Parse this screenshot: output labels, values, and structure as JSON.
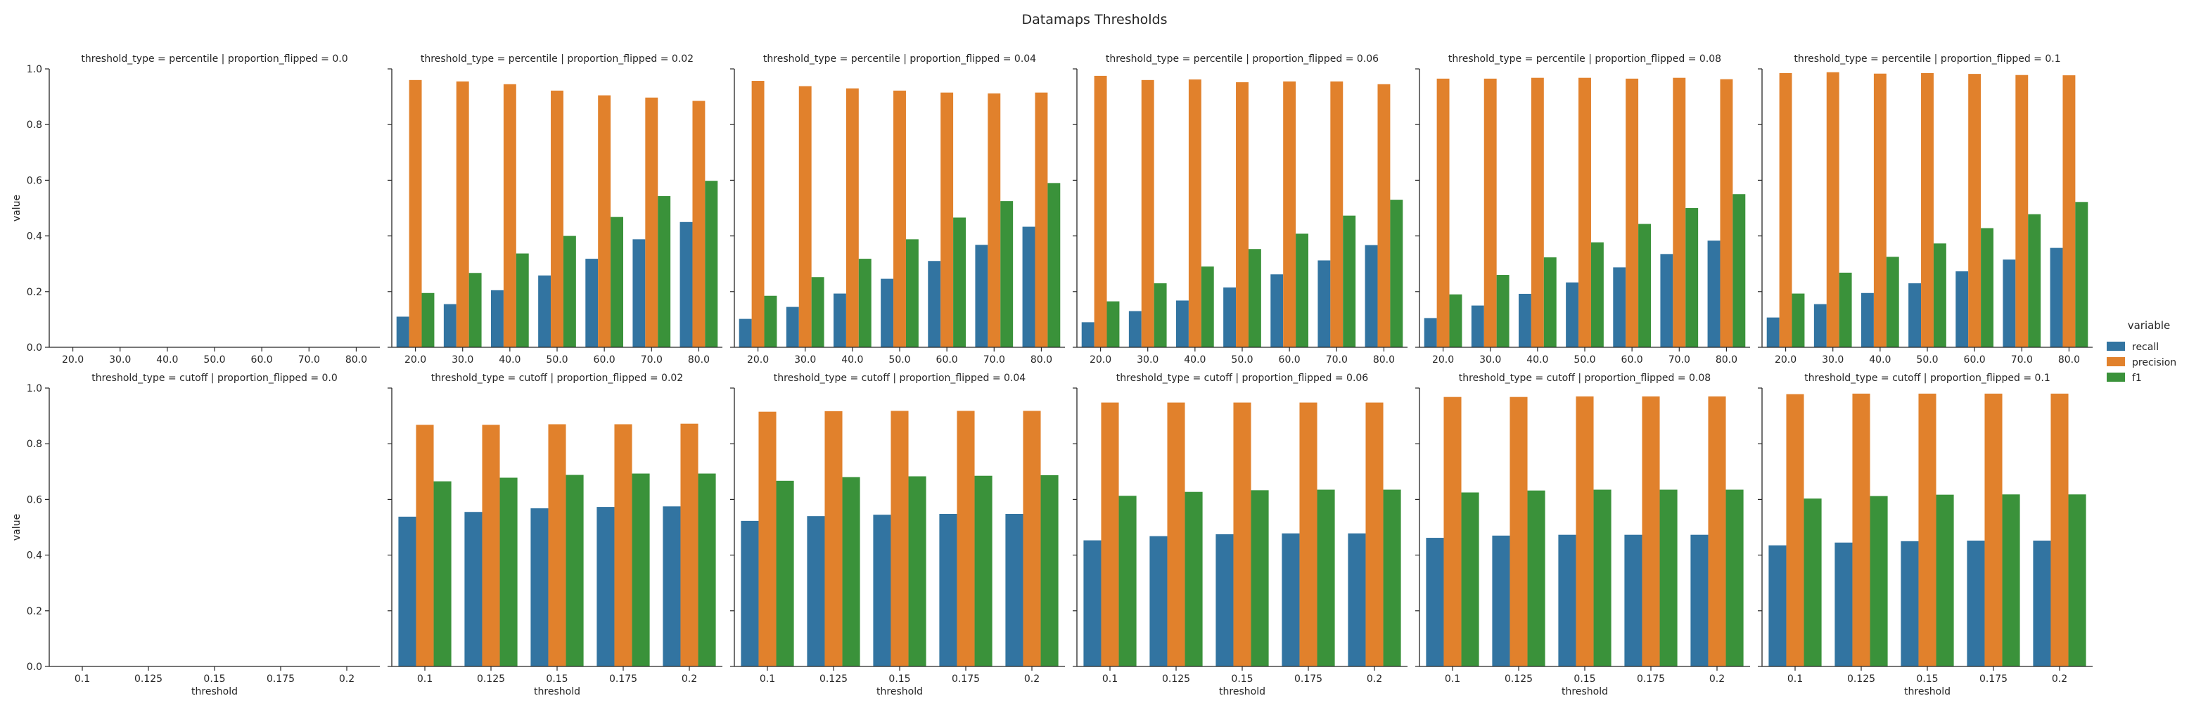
{
  "figure": {
    "title": "Datamaps Thresholds",
    "legend": {
      "title": "variable",
      "placement": "right",
      "entries": [
        {
          "name": "recall",
          "color": "#3274a1"
        },
        {
          "name": "precision",
          "color": "#e1812c"
        },
        {
          "name": "f1",
          "color": "#3a923a"
        }
      ]
    },
    "ylabel": "value",
    "xlabel": "threshold"
  },
  "chart_data": [
    {
      "type": "bar",
      "title": "threshold_type = percentile | proportion_flipped = 0.0",
      "xlabel": "",
      "ylabel": "value",
      "ylim": [
        0,
        1
      ],
      "categories": [
        "20.0",
        "30.0",
        "40.0",
        "50.0",
        "60.0",
        "70.0",
        "80.0"
      ],
      "series": []
    },
    {
      "type": "bar",
      "title": "threshold_type = percentile | proportion_flipped = 0.02",
      "xlabel": "",
      "ylabel": "",
      "ylim": [
        0,
        1
      ],
      "categories": [
        "20.0",
        "30.0",
        "40.0",
        "50.0",
        "60.0",
        "70.0",
        "80.0"
      ],
      "series": [
        {
          "name": "recall",
          "values": [
            0.11,
            0.155,
            0.205,
            0.258,
            0.318,
            0.388,
            0.45
          ]
        },
        {
          "name": "precision",
          "values": [
            0.96,
            0.955,
            0.945,
            0.922,
            0.905,
            0.897,
            0.885
          ]
        },
        {
          "name": "f1",
          "values": [
            0.195,
            0.267,
            0.337,
            0.4,
            0.468,
            0.543,
            0.598
          ]
        }
      ]
    },
    {
      "type": "bar",
      "title": "threshold_type = percentile | proportion_flipped = 0.04",
      "xlabel": "",
      "ylabel": "",
      "ylim": [
        0,
        1
      ],
      "categories": [
        "20.0",
        "30.0",
        "40.0",
        "50.0",
        "60.0",
        "70.0",
        "80.0"
      ],
      "series": [
        {
          "name": "recall",
          "values": [
            0.102,
            0.145,
            0.193,
            0.246,
            0.31,
            0.368,
            0.433
          ]
        },
        {
          "name": "precision",
          "values": [
            0.957,
            0.938,
            0.93,
            0.922,
            0.915,
            0.912,
            0.915
          ]
        },
        {
          "name": "f1",
          "values": [
            0.185,
            0.252,
            0.318,
            0.388,
            0.466,
            0.525,
            0.59
          ]
        }
      ]
    },
    {
      "type": "bar",
      "title": "threshold_type = percentile | proportion_flipped = 0.06",
      "xlabel": "",
      "ylabel": "",
      "ylim": [
        0,
        1
      ],
      "categories": [
        "20.0",
        "30.0",
        "40.0",
        "50.0",
        "60.0",
        "70.0",
        "80.0"
      ],
      "series": [
        {
          "name": "recall",
          "values": [
            0.09,
            0.13,
            0.168,
            0.215,
            0.262,
            0.312,
            0.367
          ]
        },
        {
          "name": "precision",
          "values": [
            0.975,
            0.96,
            0.962,
            0.952,
            0.955,
            0.955,
            0.945
          ]
        },
        {
          "name": "f1",
          "values": [
            0.165,
            0.23,
            0.29,
            0.353,
            0.408,
            0.473,
            0.53
          ]
        }
      ]
    },
    {
      "type": "bar",
      "title": "threshold_type = percentile | proportion_flipped = 0.08",
      "xlabel": "",
      "ylabel": "",
      "ylim": [
        0,
        1
      ],
      "categories": [
        "20.0",
        "30.0",
        "40.0",
        "50.0",
        "60.0",
        "70.0",
        "80.0"
      ],
      "series": [
        {
          "name": "recall",
          "values": [
            0.105,
            0.15,
            0.192,
            0.233,
            0.287,
            0.335,
            0.383
          ]
        },
        {
          "name": "precision",
          "values": [
            0.965,
            0.965,
            0.968,
            0.968,
            0.965,
            0.968,
            0.963
          ]
        },
        {
          "name": "f1",
          "values": [
            0.19,
            0.26,
            0.323,
            0.377,
            0.443,
            0.5,
            0.55
          ]
        }
      ]
    },
    {
      "type": "bar",
      "title": "threshold_type = percentile | proportion_flipped = 0.1",
      "xlabel": "",
      "ylabel": "",
      "ylim": [
        0,
        1
      ],
      "categories": [
        "20.0",
        "30.0",
        "40.0",
        "50.0",
        "60.0",
        "70.0",
        "80.0"
      ],
      "series": [
        {
          "name": "recall",
          "values": [
            0.107,
            0.155,
            0.195,
            0.23,
            0.273,
            0.315,
            0.357
          ]
        },
        {
          "name": "precision",
          "values": [
            0.985,
            0.988,
            0.983,
            0.985,
            0.982,
            0.978,
            0.977
          ]
        },
        {
          "name": "f1",
          "values": [
            0.193,
            0.268,
            0.325,
            0.373,
            0.428,
            0.478,
            0.522
          ]
        }
      ]
    },
    {
      "type": "bar",
      "title": "threshold_type = cutoff | proportion_flipped = 0.0",
      "xlabel": "threshold",
      "ylabel": "value",
      "ylim": [
        0,
        1
      ],
      "categories": [
        "0.1",
        "0.125",
        "0.15",
        "0.175",
        "0.2"
      ],
      "series": []
    },
    {
      "type": "bar",
      "title": "threshold_type = cutoff | proportion_flipped = 0.02",
      "xlabel": "threshold",
      "ylabel": "",
      "ylim": [
        0,
        1
      ],
      "categories": [
        "0.1",
        "0.125",
        "0.15",
        "0.175",
        "0.2"
      ],
      "series": [
        {
          "name": "recall",
          "values": [
            0.538,
            0.555,
            0.568,
            0.573,
            0.575
          ]
        },
        {
          "name": "precision",
          "values": [
            0.868,
            0.868,
            0.87,
            0.87,
            0.872
          ]
        },
        {
          "name": "f1",
          "values": [
            0.665,
            0.678,
            0.688,
            0.693,
            0.693
          ]
        }
      ]
    },
    {
      "type": "bar",
      "title": "threshold_type = cutoff | proportion_flipped = 0.04",
      "xlabel": "threshold",
      "ylabel": "",
      "ylim": [
        0,
        1
      ],
      "categories": [
        "0.1",
        "0.125",
        "0.15",
        "0.175",
        "0.2"
      ],
      "series": [
        {
          "name": "recall",
          "values": [
            0.523,
            0.54,
            0.545,
            0.548,
            0.548
          ]
        },
        {
          "name": "precision",
          "values": [
            0.915,
            0.917,
            0.918,
            0.918,
            0.918
          ]
        },
        {
          "name": "f1",
          "values": [
            0.667,
            0.68,
            0.683,
            0.685,
            0.687
          ]
        }
      ]
    },
    {
      "type": "bar",
      "title": "threshold_type = cutoff | proportion_flipped = 0.06",
      "xlabel": "threshold",
      "ylabel": "",
      "ylim": [
        0,
        1
      ],
      "categories": [
        "0.1",
        "0.125",
        "0.15",
        "0.175",
        "0.2"
      ],
      "series": [
        {
          "name": "recall",
          "values": [
            0.453,
            0.468,
            0.475,
            0.478,
            0.478
          ]
        },
        {
          "name": "precision",
          "values": [
            0.948,
            0.948,
            0.948,
            0.948,
            0.948
          ]
        },
        {
          "name": "f1",
          "values": [
            0.613,
            0.627,
            0.633,
            0.635,
            0.635
          ]
        }
      ]
    },
    {
      "type": "bar",
      "title": "threshold_type = cutoff | proportion_flipped = 0.08",
      "xlabel": "threshold",
      "ylabel": "",
      "ylim": [
        0,
        1
      ],
      "categories": [
        "0.1",
        "0.125",
        "0.15",
        "0.175",
        "0.2"
      ],
      "series": [
        {
          "name": "recall",
          "values": [
            0.462,
            0.47,
            0.473,
            0.473,
            0.473
          ]
        },
        {
          "name": "precision",
          "values": [
            0.968,
            0.968,
            0.97,
            0.97,
            0.97
          ]
        },
        {
          "name": "f1",
          "values": [
            0.625,
            0.632,
            0.635,
            0.635,
            0.635
          ]
        }
      ]
    },
    {
      "type": "bar",
      "title": "threshold_type = cutoff | proportion_flipped = 0.1",
      "xlabel": "threshold",
      "ylabel": "",
      "ylim": [
        0,
        1
      ],
      "categories": [
        "0.1",
        "0.125",
        "0.15",
        "0.175",
        "0.2"
      ],
      "series": [
        {
          "name": "recall",
          "values": [
            0.435,
            0.445,
            0.45,
            0.452,
            0.452
          ]
        },
        {
          "name": "precision",
          "values": [
            0.978,
            0.98,
            0.98,
            0.98,
            0.98
          ]
        },
        {
          "name": "f1",
          "values": [
            0.603,
            0.612,
            0.617,
            0.618,
            0.618
          ]
        }
      ]
    }
  ],
  "yticks": [
    "0.0",
    "0.2",
    "0.4",
    "0.6",
    "0.8",
    "1.0"
  ]
}
